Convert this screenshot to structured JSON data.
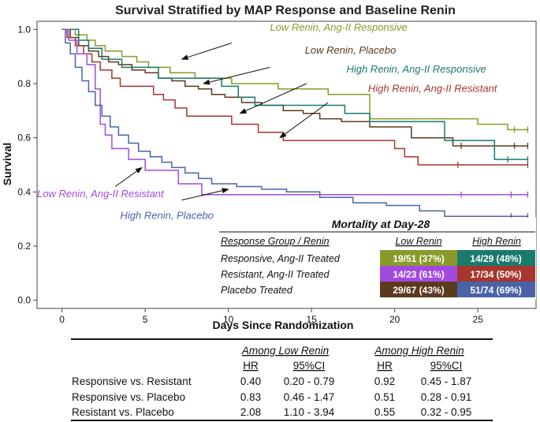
{
  "chart_data": {
    "type": "line",
    "title": "Survival Stratified by MAP Response and Baseline Renin",
    "xlabel": "Days Since Randomization",
    "ylabel": "Survival",
    "xlim": [
      -1.5,
      28.5
    ],
    "ylim": [
      -0.03,
      1.03
    ],
    "x_ticks": [
      0,
      5,
      10,
      15,
      20,
      25
    ],
    "y_ticks": [
      0.0,
      0.2,
      0.4,
      0.6,
      0.8,
      1.0
    ],
    "x_tick_labels": [
      "0",
      "5",
      "10",
      "15",
      "20",
      "25"
    ],
    "y_tick_labels": [
      "0.0",
      "0.2",
      "0.4",
      "0.6",
      "0.8",
      "1.0"
    ],
    "series": [
      {
        "name": "Low Renin, Ang-II Responsive",
        "color": "#8a9a2a",
        "x": [
          0,
          0.8,
          1.5,
          2.0,
          2.6,
          3.6,
          4.5,
          5.2,
          6.5,
          8.0,
          10.2,
          13.0,
          16.0,
          18.5,
          25.0,
          26.8,
          28.0
        ],
        "y": [
          1.0,
          0.98,
          0.96,
          0.94,
          0.92,
          0.9,
          0.88,
          0.86,
          0.84,
          0.82,
          0.8,
          0.78,
          0.76,
          0.67,
          0.65,
          0.63,
          0.63
        ],
        "censor_x": [
          27.2,
          28.0
        ],
        "censor_y": [
          0.63,
          0.63
        ]
      },
      {
        "name": "Low Renin, Placebo",
        "color": "#5c3a1f",
        "x": [
          0,
          0.5,
          1.0,
          1.6,
          2.2,
          2.8,
          3.4,
          4.2,
          5.0,
          5.8,
          6.6,
          7.4,
          8.2,
          9.0,
          9.8,
          10.8,
          12.0,
          13.3,
          14.5,
          15.5,
          16.8,
          18.5,
          21.0,
          23.5,
          28.0
        ],
        "y": [
          1.0,
          0.97,
          0.94,
          0.92,
          0.9,
          0.88,
          0.87,
          0.85,
          0.84,
          0.82,
          0.81,
          0.79,
          0.78,
          0.76,
          0.75,
          0.73,
          0.72,
          0.7,
          0.69,
          0.67,
          0.66,
          0.64,
          0.6,
          0.57,
          0.57
        ],
        "censor_x": [
          24.0,
          26.0,
          27.2,
          28.0
        ],
        "censor_y": [
          0.57,
          0.57,
          0.57,
          0.57
        ]
      },
      {
        "name": "High Renin, Ang-II Responsive",
        "color": "#1a7a6e",
        "x": [
          0,
          1.0,
          1.6,
          2.4,
          3.6,
          5.8,
          9.6,
          10.6,
          11.6,
          17.0,
          18.5,
          23.0,
          26.0,
          28.0
        ],
        "y": [
          1.0,
          0.96,
          0.93,
          0.89,
          0.86,
          0.82,
          0.79,
          0.75,
          0.72,
          0.69,
          0.66,
          0.59,
          0.52,
          0.52
        ],
        "censor_x": [
          26.8,
          28.0
        ],
        "censor_y": [
          0.52,
          0.52
        ]
      },
      {
        "name": "High Renin, Ang-II Resistant",
        "color": "#a6362e",
        "x": [
          0,
          0.3,
          0.8,
          1.3,
          1.8,
          2.3,
          3.0,
          3.5,
          5.5,
          6.1,
          6.8,
          7.5,
          10.2,
          11.8,
          13.3,
          20.0,
          20.6,
          21.4,
          22.1,
          28.0
        ],
        "y": [
          1.0,
          0.97,
          0.94,
          0.91,
          0.88,
          0.85,
          0.82,
          0.79,
          0.76,
          0.74,
          0.71,
          0.68,
          0.65,
          0.62,
          0.59,
          0.56,
          0.53,
          0.5,
          0.5,
          0.5
        ],
        "censor_x": [
          23.8,
          28.0
        ],
        "censor_y": [
          0.5,
          0.5
        ]
      },
      {
        "name": "Low Renin, Ang-II Resistant",
        "color": "#a24ae0",
        "x": [
          0,
          0.4,
          0.9,
          1.5,
          2.0,
          2.3,
          2.6,
          3.0,
          4.0,
          5.0,
          7.0,
          8.4,
          14.0,
          28.0
        ],
        "y": [
          1.0,
          0.96,
          0.91,
          0.87,
          0.78,
          0.65,
          0.61,
          0.56,
          0.52,
          0.48,
          0.43,
          0.39,
          0.39,
          0.39
        ],
        "censor_x": [
          24.0,
          27.0,
          28.0
        ],
        "censor_y": [
          0.39,
          0.39,
          0.39
        ]
      },
      {
        "name": "High Renin, Placebo",
        "color": "#4a63a8",
        "x": [
          0,
          0.2,
          0.5,
          0.8,
          1.2,
          1.6,
          2.0,
          2.4,
          2.9,
          3.4,
          4.0,
          4.6,
          5.3,
          6.0,
          6.6,
          7.4,
          8.2,
          9.0,
          10.5,
          12.0,
          13.5,
          15.5,
          17.5,
          19.5,
          21.5,
          23.0,
          28.0
        ],
        "y": [
          1.0,
          0.95,
          0.91,
          0.86,
          0.81,
          0.77,
          0.72,
          0.68,
          0.64,
          0.61,
          0.58,
          0.55,
          0.53,
          0.51,
          0.49,
          0.47,
          0.45,
          0.43,
          0.42,
          0.41,
          0.4,
          0.38,
          0.36,
          0.35,
          0.33,
          0.31,
          0.31
        ],
        "censor_x": [
          27.0,
          28.0
        ],
        "censor_y": [
          0.31,
          0.31
        ]
      }
    ],
    "annotations": [
      {
        "text": "Low Renin, Ang-II Responsive",
        "color": "#8a9a2a",
        "label_at": [
          12.5,
          0.995
        ],
        "arrow_from": [
          10.2,
          0.95
        ],
        "arrow_to": [
          7.2,
          0.89
        ]
      },
      {
        "text": "Low Renin, Placebo",
        "color": "#5c3a1f",
        "label_at": [
          14.6,
          0.91
        ],
        "arrow_from": [
          12.5,
          0.86
        ],
        "arrow_to": [
          8.5,
          0.8
        ]
      },
      {
        "text": "High Renin, Ang-II Responsive",
        "color": "#1a7a6e",
        "label_at": [
          17.1,
          0.84
        ],
        "arrow_from": [
          14.7,
          0.8
        ],
        "arrow_to": [
          10.7,
          0.69
        ]
      },
      {
        "text": "High Renin, Ang-II Resistant",
        "color": "#a6362e",
        "label_at": [
          18.4,
          0.77
        ],
        "arrow_from": [
          16.0,
          0.73
        ],
        "arrow_to": [
          13.1,
          0.6
        ]
      },
      {
        "text": "Low Renin, Ang-II Resistant",
        "color": "#a24ae0",
        "label_at": [
          -1.5,
          0.38
        ],
        "arrow_from": [
          3.2,
          0.42
        ],
        "arrow_to": [
          4.8,
          0.49
        ]
      },
      {
        "text": "High Renin, Placebo",
        "color": "#4a63a8",
        "label_at": [
          3.5,
          0.3
        ],
        "arrow_from": [
          7.2,
          0.37
        ],
        "arrow_to": [
          10.0,
          0.41
        ]
      }
    ]
  },
  "mortality_table": {
    "title": "Mortality at Day-28",
    "headers": [
      "Response Group / Renin",
      "Low Renin",
      "High Renin"
    ],
    "rows": [
      {
        "group": "Responsive, Ang-II Treated",
        "low": "19/51 (37%)",
        "high": "14/29 (48%)",
        "low_color": "#8a9a2a",
        "high_color": "#1a7a6e"
      },
      {
        "group": "Resistant, Ang-II Treated",
        "low": "14/23 (61%)",
        "high": "17/34 (50%)",
        "low_color": "#a24ae0",
        "high_color": "#a6362e"
      },
      {
        "group": "Placebo Treated",
        "low": "29/67 (43%)",
        "high": "51/74 (69%)",
        "low_color": "#5c3a1f",
        "high_color": "#4a63a8"
      }
    ]
  },
  "hr_table": {
    "group_headers": [
      "Among Low Renin",
      "Among High Renin"
    ],
    "sub_headers": [
      "HR",
      "95%CI",
      "HR",
      "95%CI"
    ],
    "rows": [
      {
        "label": "Responsive vs. Resistant",
        "values": [
          "0.40",
          "0.20 - 0.79",
          "0.92",
          "0.45 - 1.87"
        ]
      },
      {
        "label": "Responsive vs. Placebo",
        "values": [
          "0.83",
          "0.46 - 1.47",
          "0.51",
          "0.28 - 0.91"
        ]
      },
      {
        "label": "Resistant vs. Placebo",
        "values": [
          "2.08",
          "1.10 - 3.94",
          "0.55",
          "0.32 - 0.95"
        ]
      }
    ]
  }
}
